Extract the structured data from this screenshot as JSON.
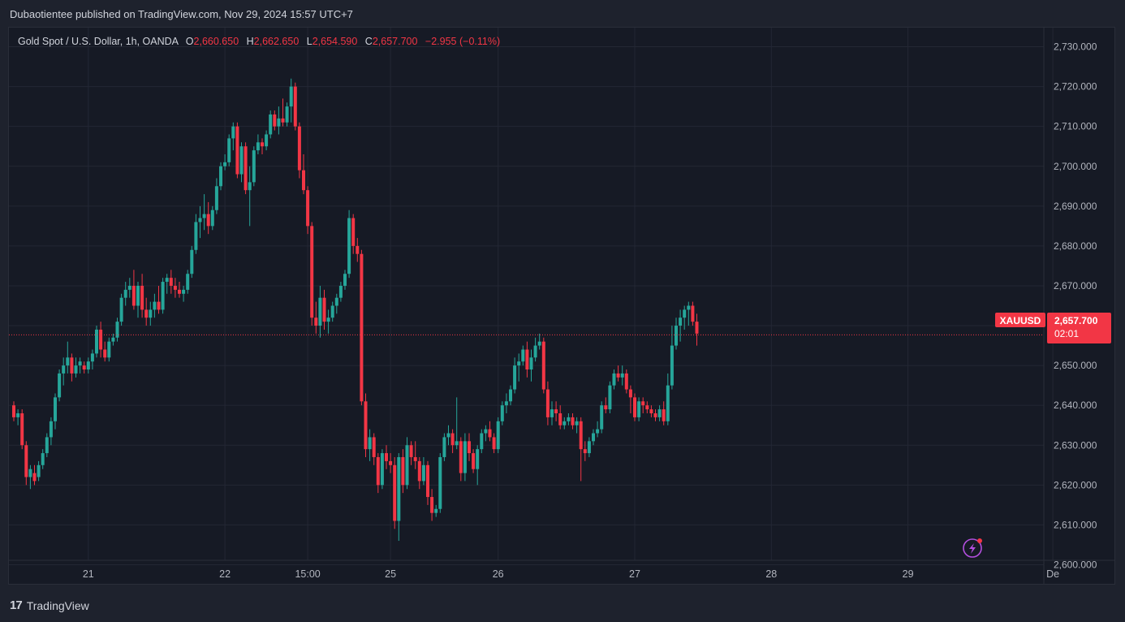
{
  "banner": "Dubaotientee published on TradingView.com, Nov 29, 2024 15:57 UTC+7",
  "legend": {
    "symbol": "Gold Spot / U.S. Dollar, 1h, OANDA",
    "o_label": "O",
    "o": "2,660.650",
    "h_label": "H",
    "h": "2,662.650",
    "l_label": "L",
    "l": "2,654.590",
    "c_label": "C",
    "c": "2,657.700",
    "change": "−2.955 (−0.11%)"
  },
  "price_tag": {
    "ticker": "XAUUSD",
    "price": "2,657.700",
    "countdown": "02:01"
  },
  "footer": {
    "brand": "TradingView",
    "logo": "17"
  },
  "icons": {
    "lightning": "lightning-icon"
  },
  "colors": {
    "up": "#26a69a",
    "down": "#f23645",
    "bg": "#161a25",
    "grid": "#232734"
  },
  "chart_data": {
    "type": "candlestick",
    "ylim": [
      2595,
      2735
    ],
    "y_ticks": [
      2600,
      2610,
      2620,
      2630,
      2640,
      2650,
      2660,
      2670,
      2680,
      2690,
      2700,
      2710,
      2720,
      2730
    ],
    "y_tick_labels": [
      "2,600.000",
      "2,610.000",
      "2,620.000",
      "2,630.000",
      "2,640.000",
      "2,650.000",
      "2,660.000",
      "2,670.000",
      "2,680.000",
      "2,690.000",
      "2,700.000",
      "2,710.000",
      "2,720.000",
      "2,730.000"
    ],
    "x_ticks": [
      {
        "label": "21",
        "bar": 18
      },
      {
        "label": "22",
        "bar": 51
      },
      {
        "label": "15:00",
        "bar": 71
      },
      {
        "label": "25",
        "bar": 91
      },
      {
        "label": "26",
        "bar": 117
      },
      {
        "label": "27",
        "bar": 150
      },
      {
        "label": "28",
        "bar": 183
      },
      {
        "label": "29",
        "bar": 216
      },
      {
        "label": "De",
        "bar": 251
      }
    ],
    "last_price": 2657.7,
    "candles": [
      [
        2640,
        2641,
        2636,
        2637
      ],
      [
        2637,
        2639,
        2635,
        2638
      ],
      [
        2638,
        2639,
        2629,
        2630
      ],
      [
        2630,
        2631,
        2620,
        2622
      ],
      [
        2622,
        2625,
        2619,
        2624
      ],
      [
        2623,
        2625,
        2620,
        2621
      ],
      [
        2622,
        2626,
        2621,
        2625
      ],
      [
        2625,
        2629,
        2624,
        2628
      ],
      [
        2628,
        2633,
        2627,
        2632
      ],
      [
        2632,
        2637,
        2630,
        2636
      ],
      [
        2636,
        2643,
        2634,
        2642
      ],
      [
        2642,
        2649,
        2641,
        2648
      ],
      [
        2648,
        2652,
        2645,
        2650
      ],
      [
        2650,
        2656,
        2648,
        2652
      ],
      [
        2652,
        2653,
        2646,
        2648
      ],
      [
        2648,
        2652,
        2647,
        2650
      ],
      [
        2650,
        2652,
        2648,
        2651
      ],
      [
        2650,
        2651,
        2648,
        2649
      ],
      [
        2649,
        2652,
        2648,
        2651
      ],
      [
        2651,
        2654,
        2649,
        2653
      ],
      [
        2653,
        2660,
        2652,
        2659
      ],
      [
        2659,
        2661,
        2652,
        2654
      ],
      [
        2654,
        2656,
        2651,
        2652
      ],
      [
        2652,
        2657,
        2651,
        2656
      ],
      [
        2656,
        2658,
        2655,
        2657
      ],
      [
        2657,
        2662,
        2656,
        2661
      ],
      [
        2661,
        2668,
        2660,
        2667
      ],
      [
        2667,
        2671,
        2665,
        2669
      ],
      [
        2669,
        2672,
        2667,
        2670
      ],
      [
        2670,
        2674,
        2664,
        2665
      ],
      [
        2665,
        2671,
        2662,
        2670
      ],
      [
        2670,
        2673,
        2662,
        2664
      ],
      [
        2664,
        2667,
        2660,
        2662
      ],
      [
        2662,
        2666,
        2660,
        2664
      ],
      [
        2664,
        2668,
        2662,
        2666
      ],
      [
        2666,
        2670,
        2663,
        2664
      ],
      [
        2664,
        2672,
        2663,
        2671
      ],
      [
        2671,
        2673,
        2668,
        2672
      ],
      [
        2672,
        2674,
        2668,
        2670
      ],
      [
        2670,
        2672,
        2667,
        2669
      ],
      [
        2669,
        2671,
        2667,
        2668
      ],
      [
        2668,
        2670,
        2666,
        2669
      ],
      [
        2669,
        2674,
        2668,
        2673
      ],
      [
        2673,
        2680,
        2672,
        2679
      ],
      [
        2679,
        2688,
        2678,
        2686
      ],
      [
        2686,
        2690,
        2682,
        2687
      ],
      [
        2687,
        2693,
        2684,
        2688
      ],
      [
        2688,
        2691,
        2683,
        2685
      ],
      [
        2685,
        2690,
        2684,
        2689
      ],
      [
        2689,
        2697,
        2688,
        2695
      ],
      [
        2695,
        2701,
        2694,
        2700
      ],
      [
        2700,
        2703,
        2699,
        2701
      ],
      [
        2701,
        2708,
        2700,
        2707
      ],
      [
        2707,
        2711,
        2704,
        2710
      ],
      [
        2710,
        2711,
        2697,
        2698
      ],
      [
        2698,
        2706,
        2696,
        2705
      ],
      [
        2705,
        2706,
        2693,
        2694
      ],
      [
        2694,
        2700,
        2685,
        2696
      ],
      [
        2696,
        2705,
        2695,
        2704
      ],
      [
        2704,
        2708,
        2703,
        2706
      ],
      [
        2706,
        2707,
        2703,
        2705
      ],
      [
        2705,
        2709,
        2704,
        2708
      ],
      [
        2708,
        2714,
        2707,
        2713
      ],
      [
        2713,
        2714,
        2709,
        2710
      ],
      [
        2710,
        2715,
        2708,
        2712
      ],
      [
        2712,
        2717,
        2710,
        2711
      ],
      [
        2711,
        2716,
        2710,
        2715
      ],
      [
        2715,
        2722,
        2711,
        2720
      ],
      [
        2720,
        2721,
        2709,
        2710
      ],
      [
        2710,
        2711,
        2697,
        2699
      ],
      [
        2699,
        2703,
        2693,
        2694
      ],
      [
        2694,
        2695,
        2683,
        2685
      ],
      [
        2685,
        2686,
        2660,
        2662
      ],
      [
        2662,
        2666,
        2658,
        2660
      ],
      [
        2660,
        2670,
        2657,
        2667
      ],
      [
        2667,
        2669,
        2659,
        2661
      ],
      [
        2661,
        2664,
        2658,
        2662
      ],
      [
        2662,
        2666,
        2661,
        2665
      ],
      [
        2665,
        2668,
        2663,
        2667
      ],
      [
        2667,
        2671,
        2666,
        2670
      ],
      [
        2670,
        2674,
        2669,
        2673
      ],
      [
        2673,
        2689,
        2672,
        2687
      ],
      [
        2687,
        2688,
        2678,
        2680
      ],
      [
        2680,
        2682,
        2676,
        2678
      ],
      [
        2678,
        2679,
        2640,
        2641
      ],
      [
        2641,
        2643,
        2627,
        2629
      ],
      [
        2629,
        2634,
        2626,
        2632
      ],
      [
        2632,
        2633,
        2625,
        2627
      ],
      [
        2627,
        2628,
        2618,
        2620
      ],
      [
        2620,
        2629,
        2619,
        2628
      ],
      [
        2628,
        2630,
        2624,
        2626
      ],
      [
        2626,
        2628,
        2623,
        2625
      ],
      [
        2625,
        2627,
        2609,
        2611
      ],
      [
        2611,
        2628,
        2606,
        2627
      ],
      [
        2627,
        2629,
        2618,
        2620
      ],
      [
        2620,
        2632,
        2619,
        2630
      ],
      [
        2630,
        2631,
        2625,
        2627
      ],
      [
        2627,
        2631,
        2624,
        2626
      ],
      [
        2626,
        2627,
        2619,
        2621
      ],
      [
        2621,
        2627,
        2620,
        2625
      ],
      [
        2625,
        2626,
        2615,
        2617
      ],
      [
        2617,
        2619,
        2611,
        2613
      ],
      [
        2613,
        2615,
        2612,
        2614
      ],
      [
        2614,
        2628,
        2613,
        2627
      ],
      [
        2627,
        2633,
        2626,
        2632
      ],
      [
        2632,
        2635,
        2630,
        2633
      ],
      [
        2633,
        2634,
        2628,
        2630
      ],
      [
        2630,
        2642,
        2629,
        2631
      ],
      [
        2631,
        2632,
        2621,
        2623
      ],
      [
        2623,
        2633,
        2621,
        2631
      ],
      [
        2631,
        2633,
        2626,
        2628
      ],
      [
        2628,
        2629,
        2623,
        2624
      ],
      [
        2624,
        2630,
        2620,
        2629
      ],
      [
        2629,
        2634,
        2628,
        2633
      ],
      [
        2633,
        2635,
        2631,
        2634
      ],
      [
        2634,
        2636,
        2631,
        2632
      ],
      [
        2632,
        2633,
        2628,
        2629
      ],
      [
        2629,
        2637,
        2628,
        2636
      ],
      [
        2636,
        2641,
        2635,
        2640
      ],
      [
        2640,
        2643,
        2638,
        2641
      ],
      [
        2641,
        2645,
        2640,
        2644
      ],
      [
        2644,
        2652,
        2643,
        2650
      ],
      [
        2650,
        2653,
        2646,
        2651
      ],
      [
        2651,
        2655,
        2650,
        2654
      ],
      [
        2654,
        2656,
        2647,
        2649
      ],
      [
        2649,
        2654,
        2646,
        2652
      ],
      [
        2652,
        2657,
        2651,
        2655
      ],
      [
        2655,
        2658,
        2654,
        2656
      ],
      [
        2656,
        2657,
        2643,
        2644
      ],
      [
        2644,
        2646,
        2635,
        2637
      ],
      [
        2637,
        2641,
        2635,
        2639
      ],
      [
        2639,
        2641,
        2636,
        2638
      ],
      [
        2638,
        2640,
        2634,
        2635
      ],
      [
        2635,
        2637,
        2634,
        2636
      ],
      [
        2636,
        2638,
        2635,
        2637
      ],
      [
        2637,
        2638,
        2634,
        2635
      ],
      [
        2635,
        2637,
        2633,
        2636
      ],
      [
        2636,
        2637,
        2621,
        2629
      ],
      [
        2629,
        2631,
        2626,
        2628
      ],
      [
        2628,
        2632,
        2627,
        2631
      ],
      [
        2631,
        2634,
        2630,
        2633
      ],
      [
        2633,
        2636,
        2632,
        2634
      ],
      [
        2634,
        2641,
        2633,
        2640
      ],
      [
        2640,
        2642,
        2638,
        2639
      ],
      [
        2639,
        2646,
        2638,
        2645
      ],
      [
        2645,
        2649,
        2644,
        2648
      ],
      [
        2648,
        2650,
        2646,
        2647
      ],
      [
        2647,
        2650,
        2645,
        2648
      ],
      [
        2648,
        2649,
        2643,
        2644
      ],
      [
        2644,
        2645,
        2638,
        2642
      ],
      [
        2642,
        2643,
        2636,
        2637
      ],
      [
        2637,
        2642,
        2636,
        2641
      ],
      [
        2641,
        2642,
        2638,
        2640
      ],
      [
        2640,
        2641,
        2638,
        2639
      ],
      [
        2639,
        2640,
        2637,
        2638
      ],
      [
        2638,
        2639,
        2636,
        2637
      ],
      [
        2637,
        2640,
        2636,
        2639
      ],
      [
        2639,
        2641,
        2635,
        2636
      ],
      [
        2636,
        2648,
        2635,
        2645
      ],
      [
        2645,
        2660,
        2644,
        2655
      ],
      [
        2655,
        2662,
        2654,
        2660
      ],
      [
        2660,
        2664,
        2656,
        2662
      ],
      [
        2662,
        2665,
        2659,
        2664
      ],
      [
        2664,
        2666,
        2660,
        2665
      ],
      [
        2665,
        2666,
        2660,
        2661
      ],
      [
        2661,
        2663,
        2655,
        2658
      ]
    ]
  }
}
